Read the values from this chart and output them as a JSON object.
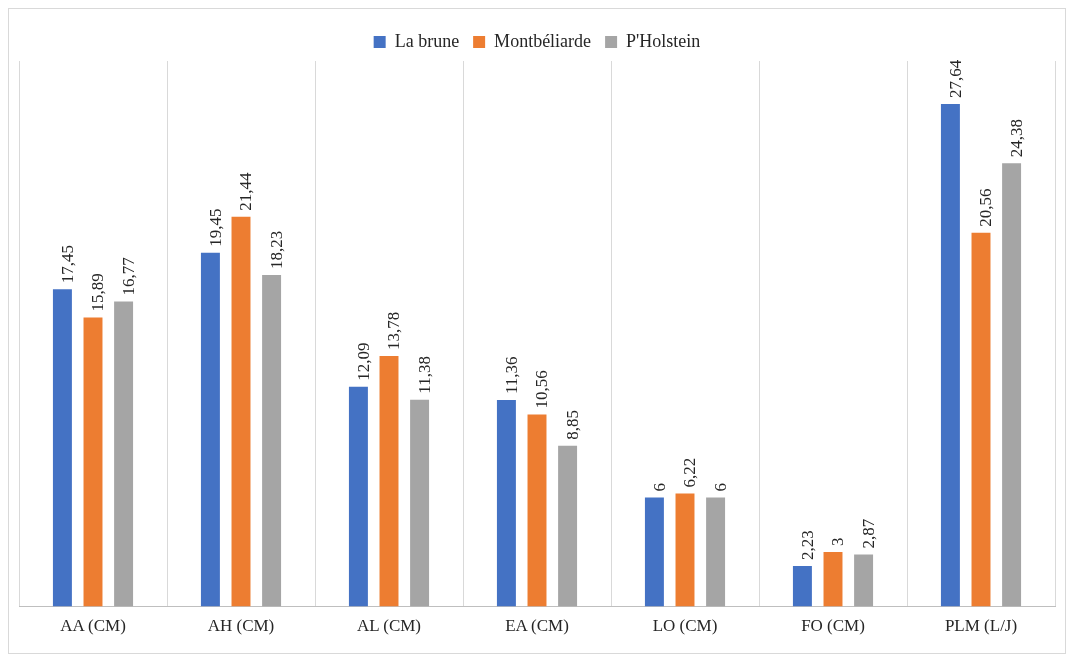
{
  "chart_data": {
    "type": "bar",
    "categories": [
      "AA (CM)",
      "AH (CM)",
      "AL (CM)",
      "EA (CM)",
      "LO (CM)",
      "FO (CM)",
      "PLM (L/J)"
    ],
    "series": [
      {
        "name": "La brune",
        "color": "#4472c4",
        "values": [
          17.45,
          19.45,
          12.09,
          11.36,
          6,
          2.23,
          27.64
        ],
        "value_labels": [
          "17,45",
          "19,45",
          "12,09",
          "11,36",
          "6",
          "2,23",
          "27,64"
        ]
      },
      {
        "name": "Montbéliarde",
        "color": "#ed7d31",
        "values": [
          15.89,
          21.44,
          13.78,
          10.56,
          6.22,
          3,
          20.56
        ],
        "value_labels": [
          "15,89",
          "21,44",
          "13,78",
          "10,56",
          "6,22",
          "3",
          "20,56"
        ]
      },
      {
        "name": "P'Holstein",
        "color": "#a5a5a5",
        "values": [
          16.77,
          18.23,
          11.38,
          8.85,
          6,
          2.87,
          24.38
        ],
        "value_labels": [
          "16,77",
          "18,23",
          "11,38",
          "8,85",
          "6",
          "2,87",
          "24,38"
        ]
      }
    ],
    "ylim": [
      0,
      30
    ],
    "tick_labels": "x",
    "grid": "x",
    "legend": "top",
    "data_labels": true
  }
}
